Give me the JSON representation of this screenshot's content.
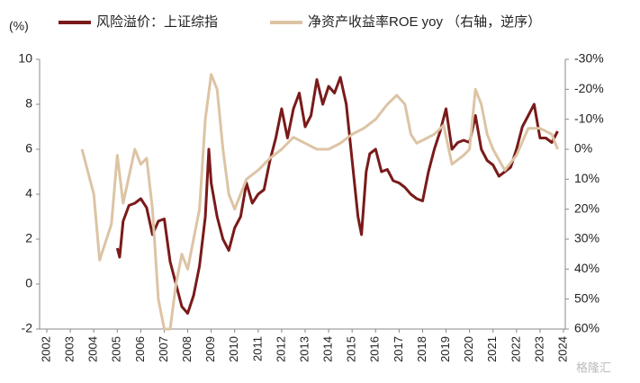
{
  "chart_data": {
    "type": "line",
    "y_unit_label": "(%)",
    "watermark": "格隆汇",
    "xlim": [
      2002,
      2024
    ],
    "xticks": [
      2002,
      2003,
      2004,
      2005,
      2006,
      2007,
      2008,
      2009,
      2010,
      2011,
      2012,
      2013,
      2014,
      2015,
      2016,
      2017,
      2018,
      2019,
      2020,
      2021,
      2022,
      2023,
      2024
    ],
    "ylim": [
      -2,
      10
    ],
    "yticks": [
      -2,
      0,
      2,
      4,
      6,
      8,
      10
    ],
    "y2lim": [
      -30,
      60
    ],
    "y2_inverted": true,
    "y2ticks": [
      {
        "value": -30,
        "label": "-30%"
      },
      {
        "value": -20,
        "label": "-20%"
      },
      {
        "value": -10,
        "label": "-10%"
      },
      {
        "value": 0,
        "label": "0%"
      },
      {
        "value": 10,
        "label": "10%"
      },
      {
        "value": 20,
        "label": "20%"
      },
      {
        "value": 30,
        "label": "30%"
      },
      {
        "value": 40,
        "label": "40%"
      },
      {
        "value": 50,
        "label": "50%"
      },
      {
        "value": 60,
        "label": "60%"
      }
    ],
    "series": [
      {
        "name": "风险溢价：上证综指",
        "color": "#7a1a1a",
        "axis": "y",
        "x": [
          2005.0,
          2005.1,
          2005.25,
          2005.5,
          2005.75,
          2006.0,
          2006.25,
          2006.5,
          2006.75,
          2007.0,
          2007.25,
          2007.5,
          2007.75,
          2008.0,
          2008.25,
          2008.5,
          2008.75,
          2008.9,
          2009.0,
          2009.25,
          2009.5,
          2009.75,
          2010.0,
          2010.25,
          2010.5,
          2010.75,
          2011.0,
          2011.25,
          2011.5,
          2011.75,
          2012.0,
          2012.25,
          2012.5,
          2012.75,
          2013.0,
          2013.25,
          2013.5,
          2013.75,
          2014.0,
          2014.25,
          2014.5,
          2014.75,
          2015.0,
          2015.25,
          2015.4,
          2015.6,
          2015.75,
          2016.0,
          2016.25,
          2016.5,
          2016.75,
          2017.0,
          2017.25,
          2017.5,
          2017.75,
          2018.0,
          2018.25,
          2018.5,
          2018.75,
          2019.0,
          2019.25,
          2019.5,
          2019.75,
          2020.0,
          2020.25,
          2020.5,
          2020.75,
          2021.0,
          2021.25,
          2021.5,
          2021.75,
          2022.0,
          2022.25,
          2022.5,
          2022.75,
          2023.0,
          2023.25,
          2023.5,
          2023.75
        ],
        "values": [
          1.6,
          1.2,
          2.8,
          3.5,
          3.6,
          3.8,
          3.4,
          2.2,
          2.8,
          2.9,
          1.0,
          0.0,
          -1.0,
          -1.3,
          -0.5,
          0.8,
          3.0,
          6.0,
          4.5,
          3.0,
          2.0,
          1.5,
          2.5,
          3.0,
          4.5,
          3.6,
          4.0,
          4.2,
          5.5,
          6.5,
          7.8,
          6.5,
          7.8,
          8.5,
          7.0,
          7.5,
          9.1,
          8.0,
          8.8,
          8.5,
          9.2,
          8.0,
          5.5,
          3.0,
          2.2,
          5.0,
          5.8,
          6.0,
          5.0,
          5.1,
          4.6,
          4.5,
          4.3,
          4.0,
          3.8,
          3.7,
          5.0,
          6.0,
          6.8,
          7.8,
          6.0,
          6.3,
          6.4,
          6.3,
          7.5,
          6.0,
          5.5,
          5.3,
          4.8,
          5.0,
          5.2,
          6.0,
          7.0,
          7.5,
          8.0,
          6.5,
          6.5,
          6.3,
          6.8
        ]
      },
      {
        "name": "净资产收益率ROE yoy （右轴，逆序）",
        "color": "#dcc4a4",
        "axis": "y2",
        "x": [
          2003.5,
          2004.0,
          2004.25,
          2004.75,
          2005.0,
          2005.25,
          2005.75,
          2006.0,
          2006.25,
          2006.5,
          2006.75,
          2007.0,
          2007.25,
          2007.5,
          2007.75,
          2008.0,
          2008.5,
          2008.75,
          2009.0,
          2009.25,
          2009.5,
          2009.75,
          2010.0,
          2010.5,
          2011.0,
          2011.5,
          2012.0,
          2012.5,
          2013.0,
          2013.5,
          2014.0,
          2014.5,
          2015.0,
          2015.5,
          2016.0,
          2016.5,
          2016.9,
          2017.25,
          2017.5,
          2017.75,
          2018.0,
          2018.5,
          2018.9,
          2019.25,
          2019.75,
          2020.0,
          2020.25,
          2020.5,
          2020.75,
          2021.0,
          2021.5,
          2022.0,
          2022.5,
          2023.0,
          2023.5,
          2023.75
        ],
        "values": [
          0,
          15,
          37,
          25,
          2,
          18,
          0,
          5,
          3,
          20,
          50,
          60,
          60,
          45,
          35,
          40,
          20,
          -10,
          -25,
          -20,
          0,
          15,
          20,
          10,
          7,
          3,
          0,
          -4,
          -2,
          0,
          0,
          -2,
          -5,
          -7,
          -10,
          -15,
          -18,
          -15,
          -5,
          -2,
          -3,
          -5,
          -8,
          5,
          2,
          0,
          -20,
          -15,
          -5,
          0,
          7,
          2,
          -7,
          -7,
          -5,
          0
        ]
      }
    ]
  }
}
